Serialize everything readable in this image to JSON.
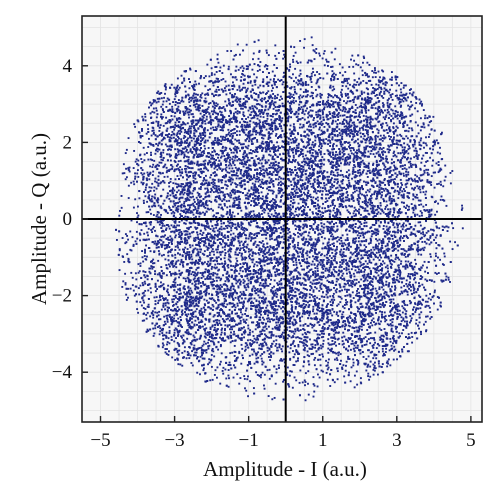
{
  "chart_data": {
    "type": "scatter",
    "title": "",
    "xlabel": "Amplitude - I (a.u.)",
    "ylabel": "Amplitude - Q (a.u.)",
    "xlim": [
      -5.5,
      5.3
    ],
    "ylim": [
      -5.3,
      5.3
    ],
    "xticks": [
      -5,
      -3,
      -1,
      1,
      3,
      5
    ],
    "xtick_labels": [
      "−5",
      "−3",
      "−1",
      "1",
      "3",
      "5"
    ],
    "yticks": [
      -4,
      -2,
      0,
      2,
      4
    ],
    "ytick_labels": [
      "−4",
      "−2",
      "0",
      "2",
      "4"
    ],
    "grid": true,
    "legend": "none",
    "colors": {
      "points": "#1f2a8a",
      "grid": "#e3e3e3",
      "frame": "#222222",
      "plot_bg": "#f7f7f7"
    },
    "series": [
      {
        "description_of_distribution": "dense roughly circular cloud of noisy constellation points",
        "center": [
          0,
          0
        ],
        "radius_approx": 4.4,
        "points": [
          [
            -3.6,
            2.8
          ],
          [
            -3.2,
            1.9
          ],
          [
            -2.8,
            3.1
          ],
          [
            -2.3,
            2.2
          ],
          [
            -1.9,
            3.6
          ],
          [
            -1.4,
            2.7
          ],
          [
            -0.9,
            3.9
          ],
          [
            -0.4,
            3.0
          ],
          [
            0.2,
            4.1
          ],
          [
            0.7,
            3.3
          ],
          [
            1.3,
            3.8
          ],
          [
            1.8,
            2.9
          ],
          [
            2.4,
            3.4
          ],
          [
            2.9,
            2.4
          ],
          [
            3.3,
            1.6
          ],
          [
            3.7,
            0.8
          ],
          [
            4.0,
            -0.3
          ],
          [
            3.6,
            -1.3
          ],
          [
            3.2,
            -2.2
          ],
          [
            2.7,
            -3.0
          ],
          [
            2.1,
            -3.6
          ],
          [
            1.4,
            -3.9
          ],
          [
            0.6,
            -4.3
          ],
          [
            -0.1,
            -3.7
          ],
          [
            -0.8,
            -4.0
          ],
          [
            -1.5,
            -3.5
          ],
          [
            -2.2,
            -3.2
          ],
          [
            -2.8,
            -2.5
          ],
          [
            -3.3,
            -1.7
          ],
          [
            -3.8,
            -0.8
          ],
          [
            -4.1,
            0.3
          ],
          [
            -3.9,
            1.2
          ],
          [
            -2.5,
            0.4
          ],
          [
            -1.7,
            1.1
          ],
          [
            -1.1,
            -0.6
          ],
          [
            -0.3,
            0.5
          ],
          [
            0.4,
            -0.2
          ],
          [
            1.1,
            0.9
          ],
          [
            1.9,
            -0.5
          ],
          [
            2.6,
            0.7
          ],
          [
            2.2,
            -1.8
          ],
          [
            1.2,
            -2.4
          ],
          [
            0.1,
            -1.6
          ],
          [
            -1.0,
            -2.1
          ],
          [
            -2.0,
            -1.3
          ],
          [
            -1.5,
            2.0
          ],
          [
            -0.2,
            1.9
          ],
          [
            0.9,
            2.1
          ],
          [
            2.0,
            1.6
          ],
          [
            -2.7,
            -0.4
          ]
        ]
      }
    ]
  }
}
